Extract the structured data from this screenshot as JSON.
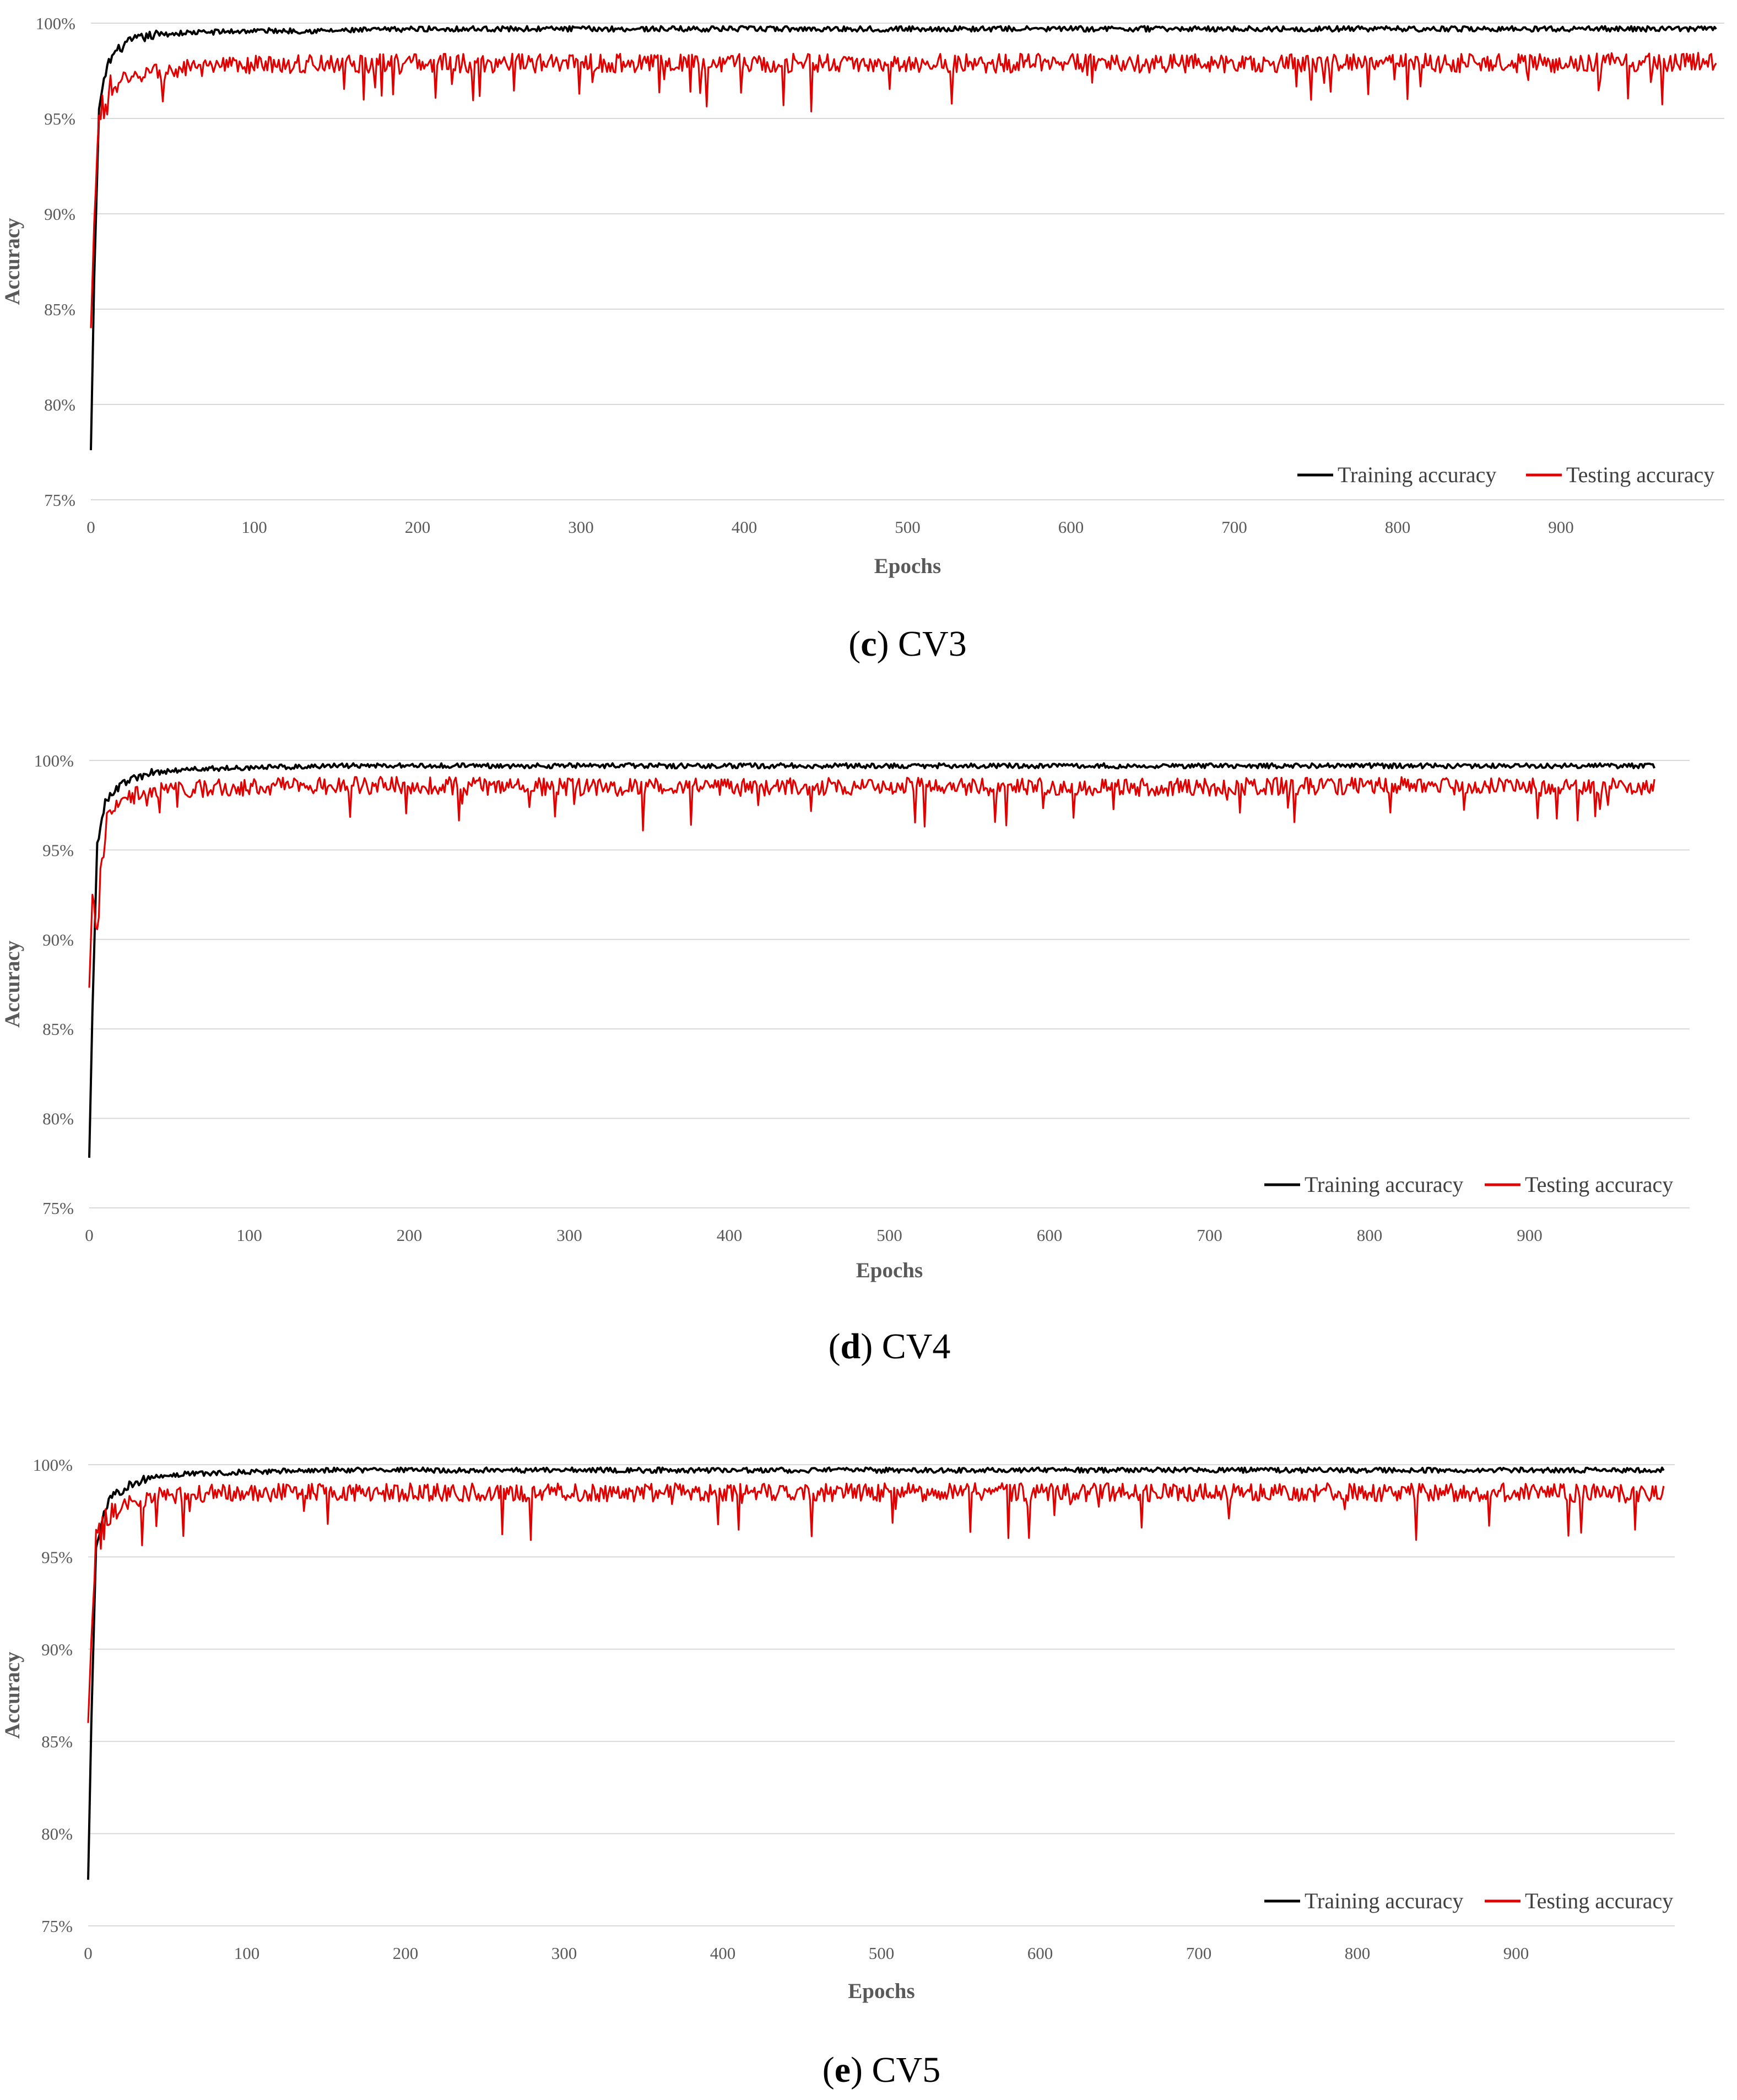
{
  "chart_data": [
    {
      "type": "line",
      "caption_letter": "c",
      "caption_text": "CV3",
      "xlabel": "Epochs",
      "ylabel": "Accuracy",
      "xlim": [
        0,
        1000
      ],
      "ylim": [
        75,
        100
      ],
      "x_ticks": [
        0,
        100,
        200,
        300,
        400,
        500,
        600,
        700,
        800,
        900
      ],
      "y_ticks": [
        "75%",
        "80%",
        "85%",
        "90%",
        "95%",
        "100%"
      ],
      "grid": true,
      "legend_position": "bottom-right",
      "series": [
        {
          "name": "Training accuracy",
          "color": "#000000",
          "x": [
            0,
            2,
            5,
            10,
            15,
            25,
            40,
            60,
            100,
            150,
            200,
            300,
            400,
            500,
            600,
            700,
            800,
            900,
            1000
          ],
          "y": [
            77.6,
            86.5,
            95.5,
            97.8,
            98.5,
            99.1,
            99.4,
            99.5,
            99.6,
            99.6,
            99.7,
            99.7,
            99.7,
            99.7,
            99.7,
            99.7,
            99.7,
            99.7,
            99.7
          ]
        },
        {
          "name": "Testing accuracy",
          "color": "#e00000",
          "x": [
            0,
            2,
            5,
            10,
            15,
            25,
            40,
            60,
            100,
            150,
            200,
            300,
            400,
            500,
            600,
            700,
            800,
            900,
            1000
          ],
          "y": [
            84.0,
            89.5,
            95.0,
            96.2,
            96.8,
            97.3,
            97.4,
            97.6,
            97.8,
            97.9,
            97.9,
            97.9,
            97.9,
            97.9,
            97.9,
            97.9,
            97.9,
            97.9,
            98.0
          ]
        }
      ]
    },
    {
      "type": "line",
      "caption_letter": "d",
      "caption_text": "CV4",
      "xlabel": "Epochs",
      "ylabel": "Accuracy",
      "xlim": [
        0,
        1000
      ],
      "ylim": [
        75,
        100
      ],
      "x_ticks": [
        0,
        100,
        200,
        300,
        400,
        500,
        600,
        700,
        800,
        900
      ],
      "y_ticks": [
        "75%",
        "80%",
        "85%",
        "90%",
        "95%",
        "100%"
      ],
      "grid": true,
      "legend_position": "bottom-right",
      "series": [
        {
          "name": "Training accuracy",
          "color": "#000000",
          "x": [
            0,
            2,
            5,
            10,
            15,
            25,
            40,
            60,
            100,
            150,
            200,
            300,
            400,
            500,
            600,
            700,
            800,
            900,
            1000
          ],
          "y": [
            77.8,
            86.0,
            95.4,
            97.6,
            98.3,
            98.9,
            99.3,
            99.5,
            99.6,
            99.7,
            99.7,
            99.7,
            99.7,
            99.7,
            99.7,
            99.7,
            99.7,
            99.7,
            99.7
          ]
        },
        {
          "name": "Testing accuracy",
          "color": "#e00000",
          "x": [
            0,
            2,
            5,
            10,
            15,
            25,
            40,
            60,
            100,
            150,
            200,
            300,
            400,
            500,
            600,
            700,
            800,
            900,
            1000
          ],
          "y": [
            87.3,
            92.5,
            91.0,
            96.5,
            97.5,
            98.0,
            98.3,
            98.4,
            98.5,
            98.6,
            98.6,
            98.5,
            98.5,
            98.6,
            98.5,
            98.5,
            98.6,
            98.5,
            98.6
          ]
        }
      ]
    },
    {
      "type": "line",
      "caption_letter": "e",
      "caption_text": "CV5",
      "xlabel": "Epochs",
      "ylabel": "Accuracy",
      "xlim": [
        0,
        1000
      ],
      "ylim": [
        75,
        100
      ],
      "x_ticks": [
        0,
        100,
        200,
        300,
        400,
        500,
        600,
        700,
        800,
        900
      ],
      "y_ticks": [
        "75%",
        "80%",
        "85%",
        "90%",
        "95%",
        "100%"
      ],
      "grid": true,
      "legend_position": "bottom-right",
      "series": [
        {
          "name": "Training accuracy",
          "color": "#000000",
          "x": [
            0,
            2,
            5,
            10,
            15,
            25,
            40,
            60,
            100,
            150,
            200,
            300,
            400,
            500,
            600,
            700,
            800,
            900,
            1000
          ],
          "y": [
            77.5,
            86.0,
            95.5,
            97.5,
            98.2,
            98.9,
            99.3,
            99.5,
            99.6,
            99.7,
            99.7,
            99.7,
            99.7,
            99.7,
            99.7,
            99.7,
            99.7,
            99.7,
            99.7
          ]
        },
        {
          "name": "Testing accuracy",
          "color": "#e00000",
          "x": [
            0,
            2,
            5,
            10,
            15,
            25,
            40,
            60,
            100,
            150,
            200,
            300,
            400,
            500,
            600,
            700,
            800,
            900,
            1000
          ],
          "y": [
            86.0,
            90.5,
            95.5,
            96.8,
            97.4,
            97.9,
            98.2,
            98.4,
            98.5,
            98.5,
            98.5,
            98.5,
            98.5,
            98.5,
            98.5,
            98.5,
            98.5,
            98.5,
            98.4
          ]
        }
      ]
    }
  ]
}
